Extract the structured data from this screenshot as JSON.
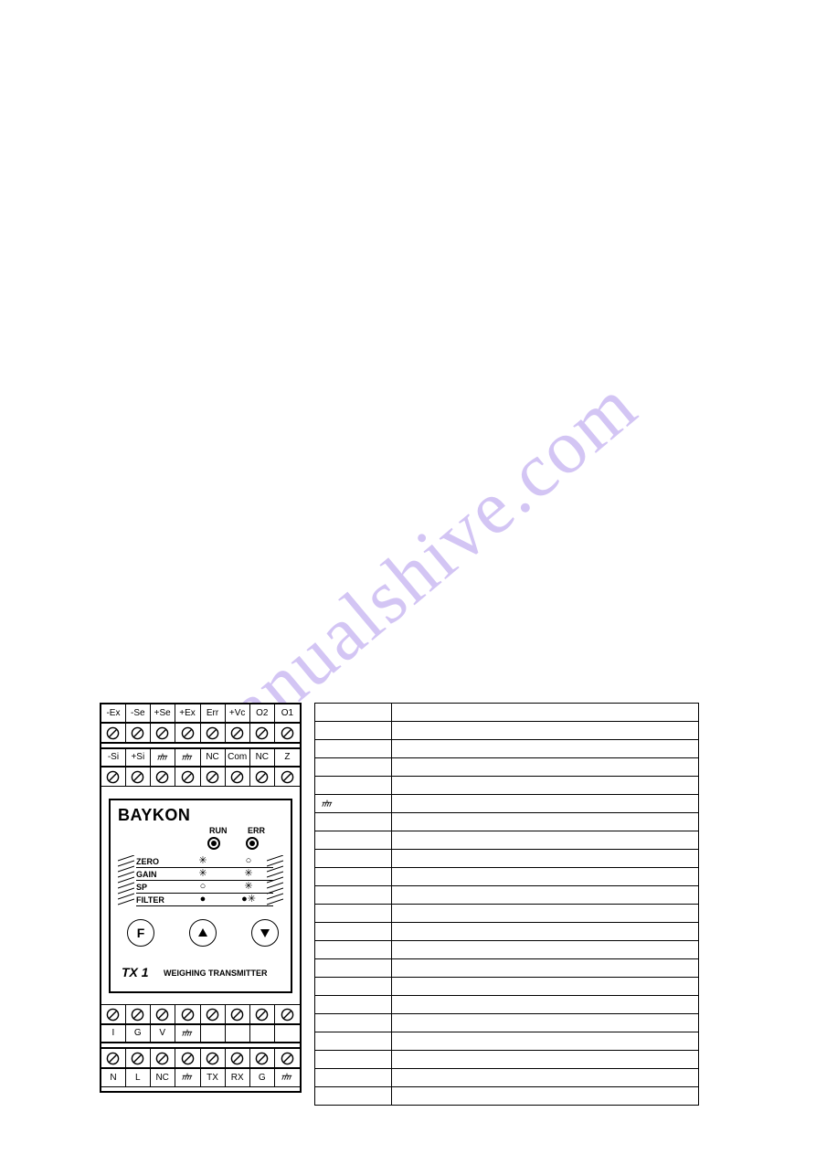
{
  "watermark": "manualshive.com",
  "device": {
    "brand": "BAYKON",
    "led_run": "RUN",
    "led_err": "ERR",
    "rows": [
      {
        "label": "ZERO",
        "c1": "✳",
        "c2": "○"
      },
      {
        "label": "GAIN",
        "c1": "✳",
        "c2": "✳"
      },
      {
        "label": "SP",
        "c1": "○",
        "c2": "✳"
      },
      {
        "label": "FILTER",
        "c1": "●",
        "c2": "●✳"
      }
    ],
    "btn_f": "F",
    "model": "TX 1",
    "subtitle": "WEIGHING TRANSMITTER",
    "top1": [
      "-Ex",
      "-Se",
      "+Se",
      "+Ex",
      "Err",
      "+Vc",
      "O2",
      "O1"
    ],
    "top2": [
      "-Si",
      "+Si",
      "GND",
      "GND",
      "NC",
      "Com",
      "NC",
      "Z"
    ],
    "bot1": [
      "I",
      "G",
      "V",
      "GND",
      "",
      "",
      "",
      ""
    ],
    "bot2": [
      "N",
      "L",
      "NC",
      "GND",
      "TX",
      "RX",
      "G",
      "GND"
    ]
  },
  "conn_table": {
    "rows": [
      [
        "",
        ""
      ],
      [
        "",
        ""
      ],
      [
        "",
        ""
      ],
      [
        "",
        ""
      ],
      [
        "",
        ""
      ],
      [
        "GND",
        ""
      ],
      [
        "",
        ""
      ],
      [
        "",
        ""
      ],
      [
        "",
        ""
      ],
      [
        "",
        ""
      ],
      [
        "",
        ""
      ],
      [
        "",
        ""
      ],
      [
        "",
        ""
      ],
      [
        "",
        ""
      ],
      [
        "",
        ""
      ],
      [
        "",
        ""
      ],
      [
        "",
        ""
      ],
      [
        "",
        ""
      ],
      [
        "",
        ""
      ],
      [
        "",
        ""
      ],
      [
        "",
        ""
      ],
      [
        "",
        ""
      ]
    ]
  },
  "colors": {
    "watermark": "#a080e8",
    "line": "#000000",
    "bg": "#ffffff"
  }
}
